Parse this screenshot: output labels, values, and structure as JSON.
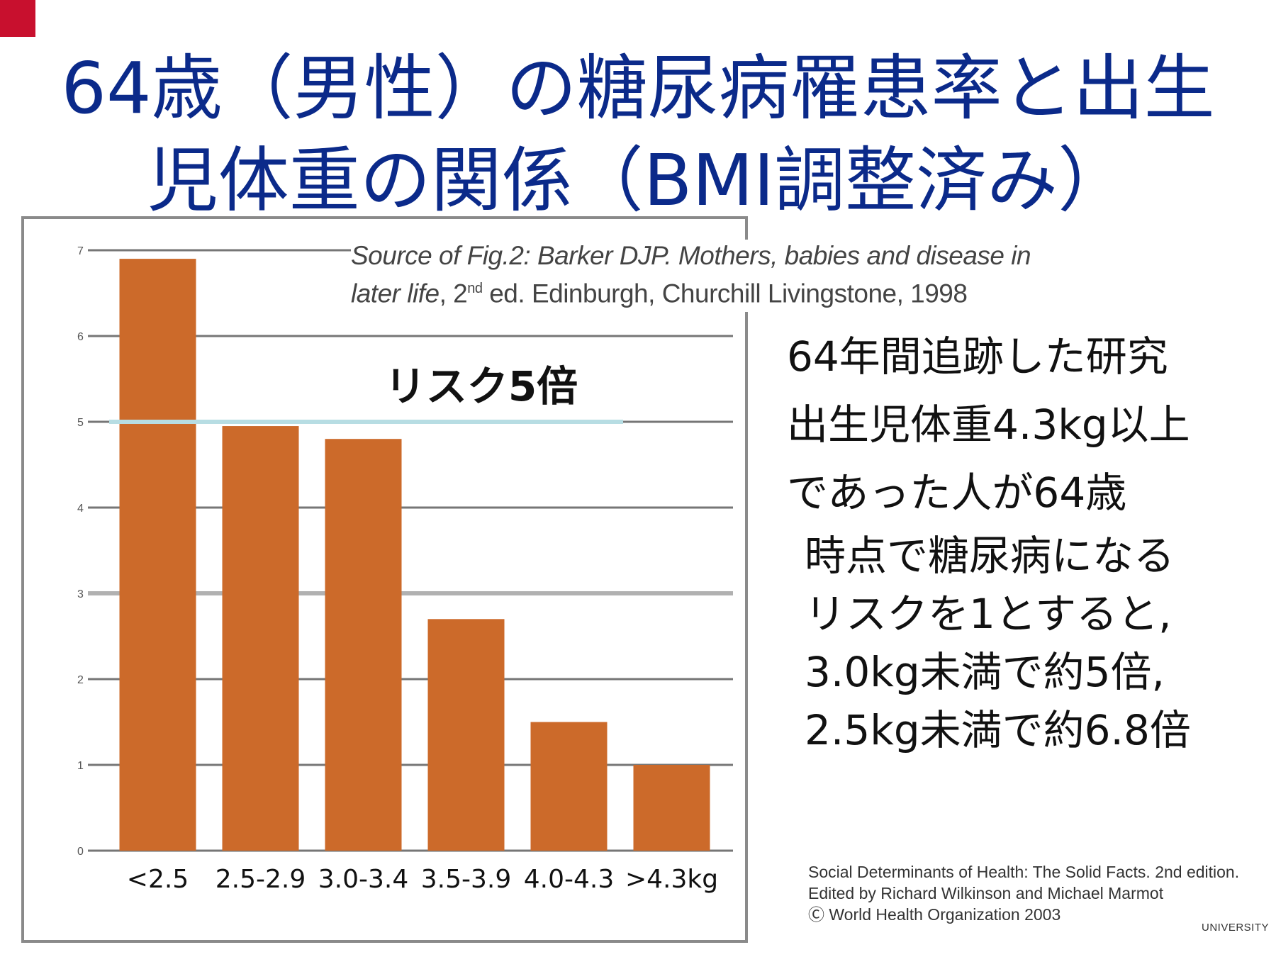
{
  "slide": {
    "title_line1": "64歳（男性）の糖尿病罹患率と出生",
    "title_line2": "児体重の関係（BMI調整済み）",
    "source_line1_a": "Source of Fig.2: Barker DJP. ",
    "source_line1_b": "Mothers, babies and disease in",
    "source_line2_a": "later life",
    "source_line2_b": ", 2",
    "source_line2_sup": "nd",
    "source_line2_c": " ed. Edinburgh, Churchill Livingstone, 1998",
    "note_lines": [
      "64年間追跡した研究",
      "出生児体重4.3kg以上",
      "であった人が64歳",
      "時点で糖尿病になる",
      "リスクを1とすると,",
      "3.0kg未満で約5倍,",
      "2.5kg未満で約6.8倍"
    ],
    "credits": [
      "Social Determinants of Health: The Solid Facts. 2nd edition.",
      "Edited by Richard Wilkinson and Michael Marmot",
      "Ⓒ World Health Organization 2003"
    ],
    "university": "UNIVERSITY"
  },
  "colors": {
    "title": "#0b2a8a",
    "bar": "#cc6a2a",
    "grid": "#555555",
    "reference_line": "#b7dde3",
    "accent_corner": "#c8102e"
  },
  "chart_data": {
    "type": "bar",
    "categories": [
      "<2.5",
      "2.5-2.9",
      "3.0-3.4",
      "3.5-3.9",
      "4.0-4.3",
      ">4.3kg"
    ],
    "values": [
      6.9,
      4.95,
      4.8,
      2.7,
      1.5,
      1.0
    ],
    "ylim": [
      0,
      7
    ],
    "yticks": [
      "0",
      "1",
      "2",
      "3",
      "4",
      "5",
      "6",
      "7"
    ],
    "grid": true,
    "reference_line": {
      "value": 5,
      "label": "リスク5倍"
    }
  }
}
